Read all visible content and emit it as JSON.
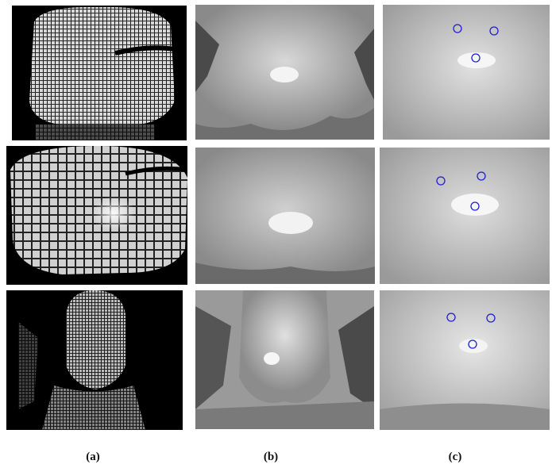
{
  "captions": {
    "a": "(a)",
    "b": "(b)",
    "c": "(c)"
  },
  "colors": {
    "landmark_circle": "#1f1fd0",
    "background": "#ffffff"
  },
  "landmarks": {
    "row1": [
      {
        "label": "left-eye"
      },
      {
        "label": "right-eye"
      },
      {
        "label": "nose-tip"
      }
    ],
    "row2": [
      {
        "label": "left-eye"
      },
      {
        "label": "right-eye"
      },
      {
        "label": "nose-tip"
      }
    ],
    "row3": [
      {
        "label": "left-eye"
      },
      {
        "label": "right-eye"
      },
      {
        "label": "nose-tip"
      }
    ]
  }
}
